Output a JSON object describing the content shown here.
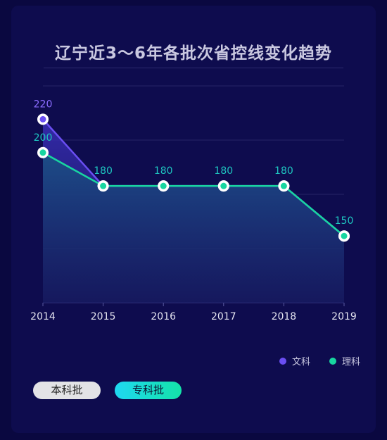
{
  "title": "辽宁近3～6年各批次省控线变化趋势",
  "chart_data": {
    "type": "line",
    "categories": [
      "2014",
      "2015",
      "2016",
      "2017",
      "2018",
      "2019"
    ],
    "series": [
      {
        "name": "文科",
        "values": [
          220,
          180,
          180,
          180,
          180,
          150
        ],
        "color": "#6a4ef2",
        "label_color": "#8b6cff"
      },
      {
        "name": "理科",
        "values": [
          200,
          180,
          180,
          180,
          180,
          150
        ],
        "color": "#18d6a0",
        "label_color": "#1ec6c0"
      }
    ],
    "data_labels": [
      {
        "series": 0,
        "index": 0,
        "text": "220"
      },
      {
        "series": 1,
        "index": 0,
        "text": "200"
      },
      {
        "series": 1,
        "index": 1,
        "text": "180"
      },
      {
        "series": 1,
        "index": 2,
        "text": "180"
      },
      {
        "series": 1,
        "index": 3,
        "text": "180"
      },
      {
        "series": 1,
        "index": 4,
        "text": "180"
      },
      {
        "series": 1,
        "index": 5,
        "text": "150"
      }
    ],
    "ylim": [
      110,
      240
    ],
    "grid": true,
    "legend_position": "bottom-right"
  },
  "legend": {
    "items": [
      "文科",
      "理科"
    ]
  },
  "batch_buttons": {
    "ben": "本科批",
    "zhuan": "专科批"
  }
}
